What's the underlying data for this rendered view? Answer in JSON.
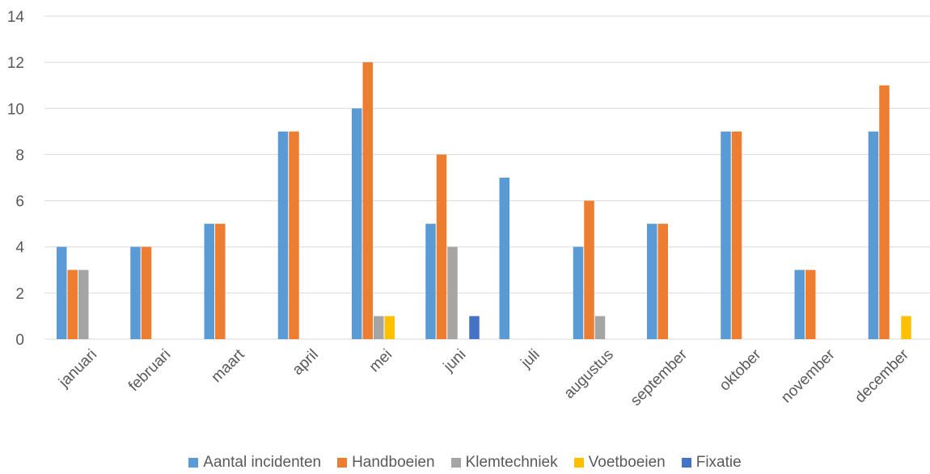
{
  "chart_data": {
    "type": "bar",
    "categories": [
      "januari",
      "februari",
      "maart",
      "april",
      "mei",
      "juni",
      "juli",
      "augustus",
      "september",
      "oktober",
      "november",
      "december"
    ],
    "series": [
      {
        "name": "Aantal incidenten",
        "color": "#5B9BD5",
        "values": [
          4,
          4,
          5,
          9,
          10,
          5,
          7,
          4,
          5,
          9,
          3,
          9
        ]
      },
      {
        "name": "Handboeien",
        "color": "#ED7D31",
        "values": [
          3,
          4,
          5,
          9,
          12,
          8,
          0,
          6,
          5,
          9,
          3,
          11
        ]
      },
      {
        "name": "Klemtechniek",
        "color": "#A5A5A5",
        "values": [
          3,
          0,
          0,
          0,
          1,
          4,
          0,
          1,
          0,
          0,
          0,
          0
        ]
      },
      {
        "name": "Voetboeien",
        "color": "#FFC000",
        "values": [
          0,
          0,
          0,
          0,
          1,
          0,
          0,
          0,
          0,
          0,
          0,
          1
        ]
      },
      {
        "name": "Fixatie",
        "color": "#4472C4",
        "values": [
          0,
          0,
          0,
          0,
          0,
          1,
          0,
          0,
          0,
          0,
          0,
          0
        ]
      }
    ],
    "yticks": [
      0,
      2,
      4,
      6,
      8,
      10,
      12,
      14
    ],
    "ylim": [
      0,
      14
    ],
    "grid": true,
    "legend_position": "bottom"
  }
}
